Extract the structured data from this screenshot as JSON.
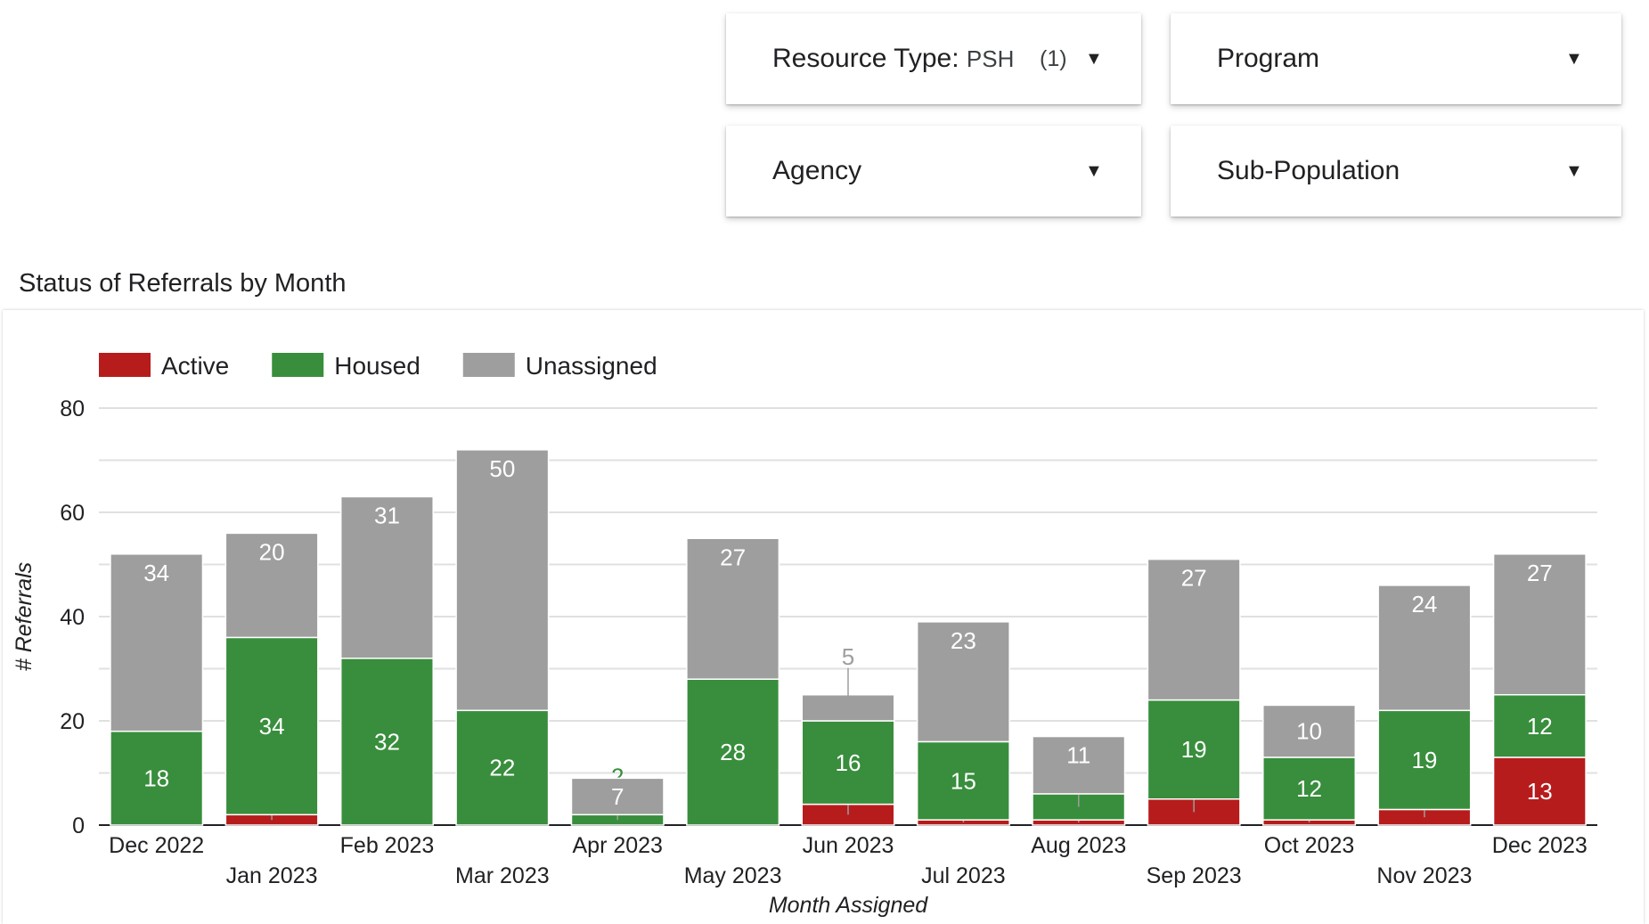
{
  "filters": [
    {
      "label": "Resource Type",
      "value": "PSH",
      "count": "(1)"
    },
    {
      "label": "Program"
    },
    {
      "label": "Agency"
    },
    {
      "label": "Sub-Population"
    }
  ],
  "colors": {
    "active": "#b71c1c",
    "housed": "#388e3c",
    "unassigned": "#9e9e9e"
  },
  "chart_data": {
    "type": "bar",
    "stacked": true,
    "title": "Status of Referrals by Month",
    "xlabel": "Month Assigned",
    "ylabel": "# Referrals",
    "ylim": [
      0,
      80
    ],
    "yticks": [
      0,
      20,
      40,
      60,
      80
    ],
    "grid": true,
    "legend_position": "top-left",
    "categories": [
      "Dec 2022",
      "Jan 2023",
      "Feb 2023",
      "Mar 2023",
      "Apr 2023",
      "May 2023",
      "Jun 2023",
      "Jul 2023",
      "Aug 2023",
      "Sep 2023",
      "Oct 2023",
      "Nov 2023",
      "Dec 2023"
    ],
    "series": [
      {
        "name": "Active",
        "color": "#b71c1c",
        "values": [
          0,
          2,
          0,
          0,
          0,
          0,
          4,
          1,
          1,
          5,
          1,
          3,
          13
        ]
      },
      {
        "name": "Housed",
        "color": "#388e3c",
        "values": [
          18,
          34,
          32,
          22,
          2,
          28,
          16,
          15,
          5,
          19,
          12,
          19,
          12
        ]
      },
      {
        "name": "Unassigned",
        "color": "#9e9e9e",
        "values": [
          34,
          20,
          31,
          50,
          7,
          27,
          5,
          23,
          11,
          27,
          10,
          24,
          27
        ]
      }
    ]
  }
}
